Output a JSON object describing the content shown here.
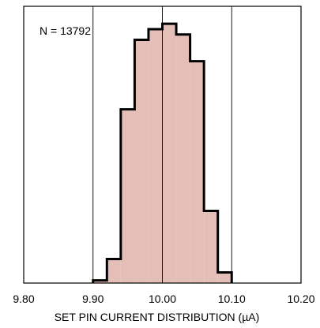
{
  "chart_data": {
    "type": "bar",
    "title": "",
    "xlabel": "SET PIN CURRENT DISTRIBUTION (µA)",
    "ylabel": "",
    "annotation": "N = 13792",
    "xlim": [
      9.8,
      10.2
    ],
    "ylim": [
      0,
      100
    ],
    "x_ticks": [
      "9.80",
      "9.90",
      "10.00",
      "10.10",
      "10.20"
    ],
    "x_tick_values": [
      9.8,
      9.9,
      10.0,
      10.1,
      10.2
    ],
    "gridlines_x": [
      9.9,
      10.0,
      10.1
    ],
    "bin_width": 0.02,
    "bins": [
      {
        "start": 9.9,
        "end": 9.92,
        "value": 1
      },
      {
        "start": 9.92,
        "end": 9.94,
        "value": 9
      },
      {
        "start": 9.94,
        "end": 9.96,
        "value": 65
      },
      {
        "start": 9.96,
        "end": 9.98,
        "value": 91
      },
      {
        "start": 9.98,
        "end": 10.0,
        "value": 95
      },
      {
        "start": 10.0,
        "end": 10.02,
        "value": 97
      },
      {
        "start": 10.02,
        "end": 10.04,
        "value": 93
      },
      {
        "start": 10.04,
        "end": 10.06,
        "value": 83
      },
      {
        "start": 10.06,
        "end": 10.08,
        "value": 27
      },
      {
        "start": 10.08,
        "end": 10.1,
        "value": 4
      }
    ],
    "grid": true,
    "colors": {
      "bar_fill": "#e4bfb7",
      "outline": "#000000",
      "gridline": "#000000"
    }
  }
}
